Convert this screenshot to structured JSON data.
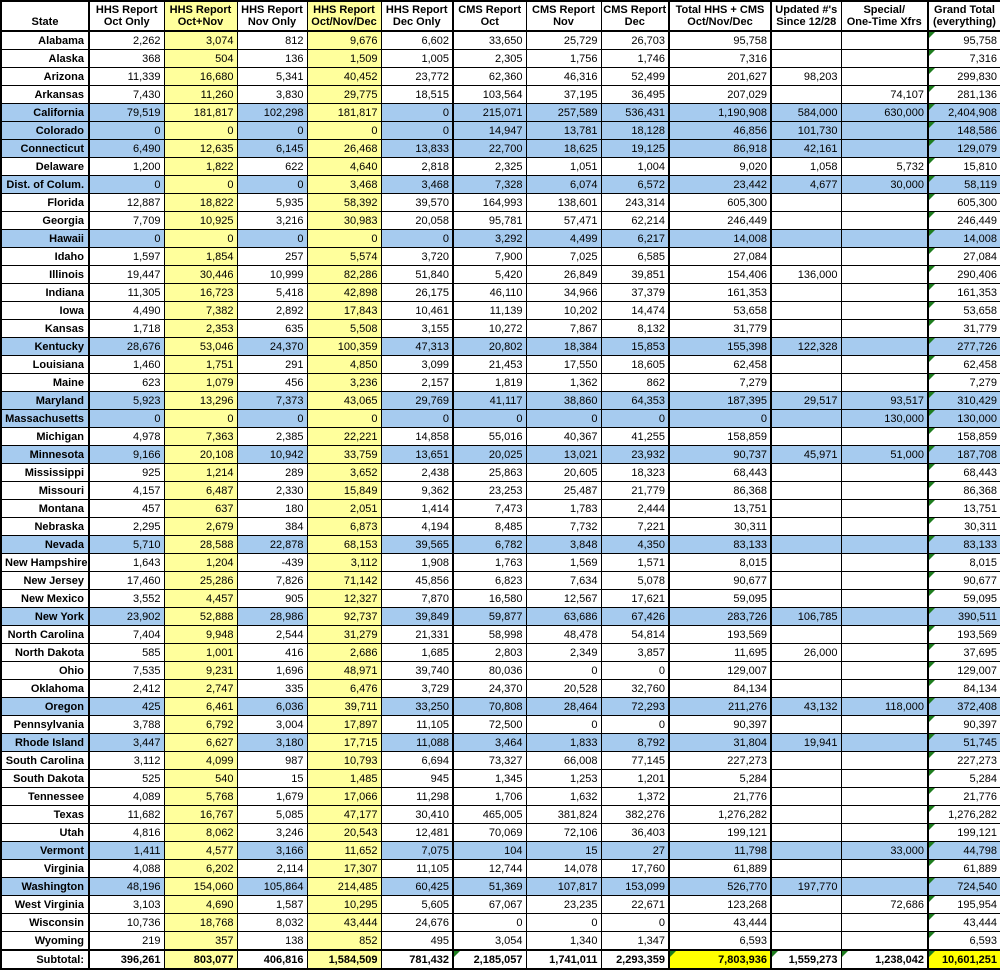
{
  "colors": {
    "row_highlight": "#a6cbef",
    "column_highlight": "#ffff9c",
    "subtotal_highlight": "#ffff00",
    "flag_green": "#1e7d1e"
  },
  "table": {
    "header": {
      "state": "State",
      "columns": [
        {
          "key": "hhs_oct",
          "line1": "HHS Report",
          "line2": "Oct Only",
          "yellow": false
        },
        {
          "key": "hhs_oct_nov",
          "line1": "HHS Report",
          "line2": "Oct+Nov",
          "yellow": true
        },
        {
          "key": "hhs_nov",
          "line1": "HHS Report",
          "line2": "Nov Only",
          "yellow": false
        },
        {
          "key": "hhs_oct_nov_dec",
          "line1": "HHS Report",
          "line2": "Oct/Nov/Dec",
          "yellow": true
        },
        {
          "key": "hhs_dec",
          "line1": "HHS Report",
          "line2": "Dec Only",
          "yellow": false
        },
        {
          "key": "cms_oct",
          "line1": "CMS Report",
          "line2": "Oct",
          "yellow": false
        },
        {
          "key": "cms_nov",
          "line1": "CMS Report",
          "line2": "Nov",
          "yellow": false
        },
        {
          "key": "cms_dec",
          "line1": "CMS Report",
          "line2": "Dec",
          "yellow": false
        },
        {
          "key": "total_hhs_cms",
          "line1": "Total HHS + CMS",
          "line2": "Oct/Nov/Dec",
          "yellow": false
        },
        {
          "key": "updated",
          "line1": "Updated #'s",
          "line2": "Since 12/28",
          "yellow": false
        },
        {
          "key": "special",
          "line1": "Special/",
          "line2": "One-Time Xfrs",
          "yellow": false
        },
        {
          "key": "grand_total",
          "line1": "Grand Total",
          "line2": "(everything)",
          "yellow": false
        }
      ]
    },
    "rows": [
      {
        "state": "Alabama",
        "highlight": false,
        "values": [
          "2,262",
          "3,074",
          "812",
          "9,676",
          "6,602",
          "33,650",
          "25,729",
          "26,703",
          "95,758",
          "",
          "",
          "95,758"
        ]
      },
      {
        "state": "Alaska",
        "highlight": false,
        "values": [
          "368",
          "504",
          "136",
          "1,509",
          "1,005",
          "2,305",
          "1,756",
          "1,746",
          "7,316",
          "",
          "",
          "7,316"
        ]
      },
      {
        "state": "Arizona",
        "highlight": false,
        "values": [
          "11,339",
          "16,680",
          "5,341",
          "40,452",
          "23,772",
          "62,360",
          "46,316",
          "52,499",
          "201,627",
          "98,203",
          "",
          "299,830"
        ]
      },
      {
        "state": "Arkansas",
        "highlight": false,
        "values": [
          "7,430",
          "11,260",
          "3,830",
          "29,775",
          "18,515",
          "103,564",
          "37,195",
          "36,495",
          "207,029",
          "",
          "74,107",
          "281,136"
        ]
      },
      {
        "state": "California",
        "highlight": true,
        "values": [
          "79,519",
          "181,817",
          "102,298",
          "181,817",
          "0",
          "215,071",
          "257,589",
          "536,431",
          "1,190,908",
          "584,000",
          "630,000",
          "2,404,908"
        ]
      },
      {
        "state": "Colorado",
        "highlight": true,
        "values": [
          "0",
          "0",
          "0",
          "0",
          "0",
          "14,947",
          "13,781",
          "18,128",
          "46,856",
          "101,730",
          "",
          "148,586"
        ]
      },
      {
        "state": "Connecticut",
        "highlight": true,
        "values": [
          "6,490",
          "12,635",
          "6,145",
          "26,468",
          "13,833",
          "22,700",
          "18,625",
          "19,125",
          "86,918",
          "42,161",
          "",
          "129,079"
        ]
      },
      {
        "state": "Delaware",
        "highlight": false,
        "values": [
          "1,200",
          "1,822",
          "622",
          "4,640",
          "2,818",
          "2,325",
          "1,051",
          "1,004",
          "9,020",
          "1,058",
          "5,732",
          "15,810"
        ]
      },
      {
        "state": "Dist. of Colum.",
        "highlight": true,
        "values": [
          "0",
          "0",
          "0",
          "3,468",
          "3,468",
          "7,328",
          "6,074",
          "6,572",
          "23,442",
          "4,677",
          "30,000",
          "58,119"
        ]
      },
      {
        "state": "Florida",
        "highlight": false,
        "values": [
          "12,887",
          "18,822",
          "5,935",
          "58,392",
          "39,570",
          "164,993",
          "138,601",
          "243,314",
          "605,300",
          "",
          "",
          "605,300"
        ]
      },
      {
        "state": "Georgia",
        "highlight": false,
        "values": [
          "7,709",
          "10,925",
          "3,216",
          "30,983",
          "20,058",
          "95,781",
          "57,471",
          "62,214",
          "246,449",
          "",
          "",
          "246,449"
        ]
      },
      {
        "state": "Hawaii",
        "highlight": true,
        "values": [
          "0",
          "0",
          "0",
          "0",
          "0",
          "3,292",
          "4,499",
          "6,217",
          "14,008",
          "",
          "",
          "14,008"
        ]
      },
      {
        "state": "Idaho",
        "highlight": false,
        "values": [
          "1,597",
          "1,854",
          "257",
          "5,574",
          "3,720",
          "7,900",
          "7,025",
          "6,585",
          "27,084",
          "",
          "",
          "27,084"
        ]
      },
      {
        "state": "Illinois",
        "highlight": false,
        "values": [
          "19,447",
          "30,446",
          "10,999",
          "82,286",
          "51,840",
          "5,420",
          "26,849",
          "39,851",
          "154,406",
          "136,000",
          "",
          "290,406"
        ]
      },
      {
        "state": "Indiana",
        "highlight": false,
        "values": [
          "11,305",
          "16,723",
          "5,418",
          "42,898",
          "26,175",
          "46,110",
          "34,966",
          "37,379",
          "161,353",
          "",
          "",
          "161,353"
        ]
      },
      {
        "state": "Iowa",
        "highlight": false,
        "values": [
          "4,490",
          "7,382",
          "2,892",
          "17,843",
          "10,461",
          "11,139",
          "10,202",
          "14,474",
          "53,658",
          "",
          "",
          "53,658"
        ]
      },
      {
        "state": "Kansas",
        "highlight": false,
        "values": [
          "1,718",
          "2,353",
          "635",
          "5,508",
          "3,155",
          "10,272",
          "7,867",
          "8,132",
          "31,779",
          "",
          "",
          "31,779"
        ]
      },
      {
        "state": "Kentucky",
        "highlight": true,
        "values": [
          "28,676",
          "53,046",
          "24,370",
          "100,359",
          "47,313",
          "20,802",
          "18,384",
          "15,853",
          "155,398",
          "122,328",
          "",
          "277,726"
        ]
      },
      {
        "state": "Louisiana",
        "highlight": false,
        "values": [
          "1,460",
          "1,751",
          "291",
          "4,850",
          "3,099",
          "21,453",
          "17,550",
          "18,605",
          "62,458",
          "",
          "",
          "62,458"
        ]
      },
      {
        "state": "Maine",
        "highlight": false,
        "values": [
          "623",
          "1,079",
          "456",
          "3,236",
          "2,157",
          "1,819",
          "1,362",
          "862",
          "7,279",
          "",
          "",
          "7,279"
        ]
      },
      {
        "state": "Maryland",
        "highlight": true,
        "values": [
          "5,923",
          "13,296",
          "7,373",
          "43,065",
          "29,769",
          "41,117",
          "38,860",
          "64,353",
          "187,395",
          "29,517",
          "93,517",
          "310,429"
        ]
      },
      {
        "state": "Massachusetts",
        "highlight": true,
        "values": [
          "0",
          "0",
          "0",
          "0",
          "0",
          "0",
          "0",
          "0",
          "0",
          "",
          "130,000",
          "130,000"
        ]
      },
      {
        "state": "Michigan",
        "highlight": false,
        "values": [
          "4,978",
          "7,363",
          "2,385",
          "22,221",
          "14,858",
          "55,016",
          "40,367",
          "41,255",
          "158,859",
          "",
          "",
          "158,859"
        ]
      },
      {
        "state": "Minnesota",
        "highlight": true,
        "values": [
          "9,166",
          "20,108",
          "10,942",
          "33,759",
          "13,651",
          "20,025",
          "13,021",
          "23,932",
          "90,737",
          "45,971",
          "51,000",
          "187,708"
        ]
      },
      {
        "state": "Mississippi",
        "highlight": false,
        "values": [
          "925",
          "1,214",
          "289",
          "3,652",
          "2,438",
          "25,863",
          "20,605",
          "18,323",
          "68,443",
          "",
          "",
          "68,443"
        ]
      },
      {
        "state": "Missouri",
        "highlight": false,
        "values": [
          "4,157",
          "6,487",
          "2,330",
          "15,849",
          "9,362",
          "23,253",
          "25,487",
          "21,779",
          "86,368",
          "",
          "",
          "86,368"
        ]
      },
      {
        "state": "Montana",
        "highlight": false,
        "values": [
          "457",
          "637",
          "180",
          "2,051",
          "1,414",
          "7,473",
          "1,783",
          "2,444",
          "13,751",
          "",
          "",
          "13,751"
        ]
      },
      {
        "state": "Nebraska",
        "highlight": false,
        "values": [
          "2,295",
          "2,679",
          "384",
          "6,873",
          "4,194",
          "8,485",
          "7,732",
          "7,221",
          "30,311",
          "",
          "",
          "30,311"
        ]
      },
      {
        "state": "Nevada",
        "highlight": true,
        "values": [
          "5,710",
          "28,588",
          "22,878",
          "68,153",
          "39,565",
          "6,782",
          "3,848",
          "4,350",
          "83,133",
          "",
          "",
          "83,133"
        ]
      },
      {
        "state": "New Hampshire",
        "highlight": false,
        "values": [
          "1,643",
          "1,204",
          "-439",
          "3,112",
          "1,908",
          "1,763",
          "1,569",
          "1,571",
          "8,015",
          "",
          "",
          "8,015"
        ]
      },
      {
        "state": "New Jersey",
        "highlight": false,
        "values": [
          "17,460",
          "25,286",
          "7,826",
          "71,142",
          "45,856",
          "6,823",
          "7,634",
          "5,078",
          "90,677",
          "",
          "",
          "90,677"
        ]
      },
      {
        "state": "New Mexico",
        "highlight": false,
        "values": [
          "3,552",
          "4,457",
          "905",
          "12,327",
          "7,870",
          "16,580",
          "12,567",
          "17,621",
          "59,095",
          "",
          "",
          "59,095"
        ]
      },
      {
        "state": "New York",
        "highlight": true,
        "values": [
          "23,902",
          "52,888",
          "28,986",
          "92,737",
          "39,849",
          "59,877",
          "63,686",
          "67,426",
          "283,726",
          "106,785",
          "",
          "390,511"
        ]
      },
      {
        "state": "North Carolina",
        "highlight": false,
        "values": [
          "7,404",
          "9,948",
          "2,544",
          "31,279",
          "21,331",
          "58,998",
          "48,478",
          "54,814",
          "193,569",
          "",
          "",
          "193,569"
        ]
      },
      {
        "state": "North Dakota",
        "highlight": false,
        "values": [
          "585",
          "1,001",
          "416",
          "2,686",
          "1,685",
          "2,803",
          "2,349",
          "3,857",
          "11,695",
          "26,000",
          "",
          "37,695"
        ]
      },
      {
        "state": "Ohio",
        "highlight": false,
        "values": [
          "7,535",
          "9,231",
          "1,696",
          "48,971",
          "39,740",
          "80,036",
          "0",
          "0",
          "129,007",
          "",
          "",
          "129,007"
        ]
      },
      {
        "state": "Oklahoma",
        "highlight": false,
        "values": [
          "2,412",
          "2,747",
          "335",
          "6,476",
          "3,729",
          "24,370",
          "20,528",
          "32,760",
          "84,134",
          "",
          "",
          "84,134"
        ]
      },
      {
        "state": "Oregon",
        "highlight": true,
        "values": [
          "425",
          "6,461",
          "6,036",
          "39,711",
          "33,250",
          "70,808",
          "28,464",
          "72,293",
          "211,276",
          "43,132",
          "118,000",
          "372,408"
        ]
      },
      {
        "state": "Pennsylvania",
        "highlight": false,
        "values": [
          "3,788",
          "6,792",
          "3,004",
          "17,897",
          "11,105",
          "72,500",
          "0",
          "0",
          "90,397",
          "",
          "",
          "90,397"
        ]
      },
      {
        "state": "Rhode Island",
        "highlight": true,
        "values": [
          "3,447",
          "6,627",
          "3,180",
          "17,715",
          "11,088",
          "3,464",
          "1,833",
          "8,792",
          "31,804",
          "19,941",
          "",
          "51,745"
        ]
      },
      {
        "state": "South Carolina",
        "highlight": false,
        "values": [
          "3,112",
          "4,099",
          "987",
          "10,793",
          "6,694",
          "73,327",
          "66,008",
          "77,145",
          "227,273",
          "",
          "",
          "227,273"
        ]
      },
      {
        "state": "South Dakota",
        "highlight": false,
        "values": [
          "525",
          "540",
          "15",
          "1,485",
          "945",
          "1,345",
          "1,253",
          "1,201",
          "5,284",
          "",
          "",
          "5,284"
        ]
      },
      {
        "state": "Tennessee",
        "highlight": false,
        "values": [
          "4,089",
          "5,768",
          "1,679",
          "17,066",
          "11,298",
          "1,706",
          "1,632",
          "1,372",
          "21,776",
          "",
          "",
          "21,776"
        ]
      },
      {
        "state": "Texas",
        "highlight": false,
        "values": [
          "11,682",
          "16,767",
          "5,085",
          "47,177",
          "30,410",
          "465,005",
          "381,824",
          "382,276",
          "1,276,282",
          "",
          "",
          "1,276,282"
        ]
      },
      {
        "state": "Utah",
        "highlight": false,
        "values": [
          "4,816",
          "8,062",
          "3,246",
          "20,543",
          "12,481",
          "70,069",
          "72,106",
          "36,403",
          "199,121",
          "",
          "",
          "199,121"
        ]
      },
      {
        "state": "Vermont",
        "highlight": true,
        "values": [
          "1,411",
          "4,577",
          "3,166",
          "11,652",
          "7,075",
          "104",
          "15",
          "27",
          "11,798",
          "",
          "33,000",
          "44,798"
        ]
      },
      {
        "state": "Virginia",
        "highlight": false,
        "values": [
          "4,088",
          "6,202",
          "2,114",
          "17,307",
          "11,105",
          "12,744",
          "14,078",
          "17,760",
          "61,889",
          "",
          "",
          "61,889"
        ]
      },
      {
        "state": "Washington",
        "highlight": true,
        "values": [
          "48,196",
          "154,060",
          "105,864",
          "214,485",
          "60,425",
          "51,369",
          "107,817",
          "153,099",
          "526,770",
          "197,770",
          "",
          "724,540"
        ]
      },
      {
        "state": "West Virginia",
        "highlight": false,
        "values": [
          "3,103",
          "4,690",
          "1,587",
          "10,295",
          "5,605",
          "67,067",
          "23,235",
          "22,671",
          "123,268",
          "",
          "72,686",
          "195,954"
        ]
      },
      {
        "state": "Wisconsin",
        "highlight": false,
        "values": [
          "10,736",
          "18,768",
          "8,032",
          "43,444",
          "24,676",
          "0",
          "0",
          "0",
          "43,444",
          "",
          "",
          "43,444"
        ]
      },
      {
        "state": "Wyoming",
        "highlight": false,
        "values": [
          "219",
          "357",
          "138",
          "852",
          "495",
          "3,054",
          "1,340",
          "1,347",
          "6,593",
          "",
          "",
          "6,593"
        ]
      }
    ],
    "subtotal": {
      "label": "Subtotal:",
      "values": [
        "396,261",
        "803,077",
        "406,816",
        "1,584,509",
        "781,432",
        "2,185,057",
        "1,741,011",
        "2,293,359",
        "7,803,936",
        "1,559,273",
        "1,238,042",
        "10,601,251"
      ]
    }
  }
}
